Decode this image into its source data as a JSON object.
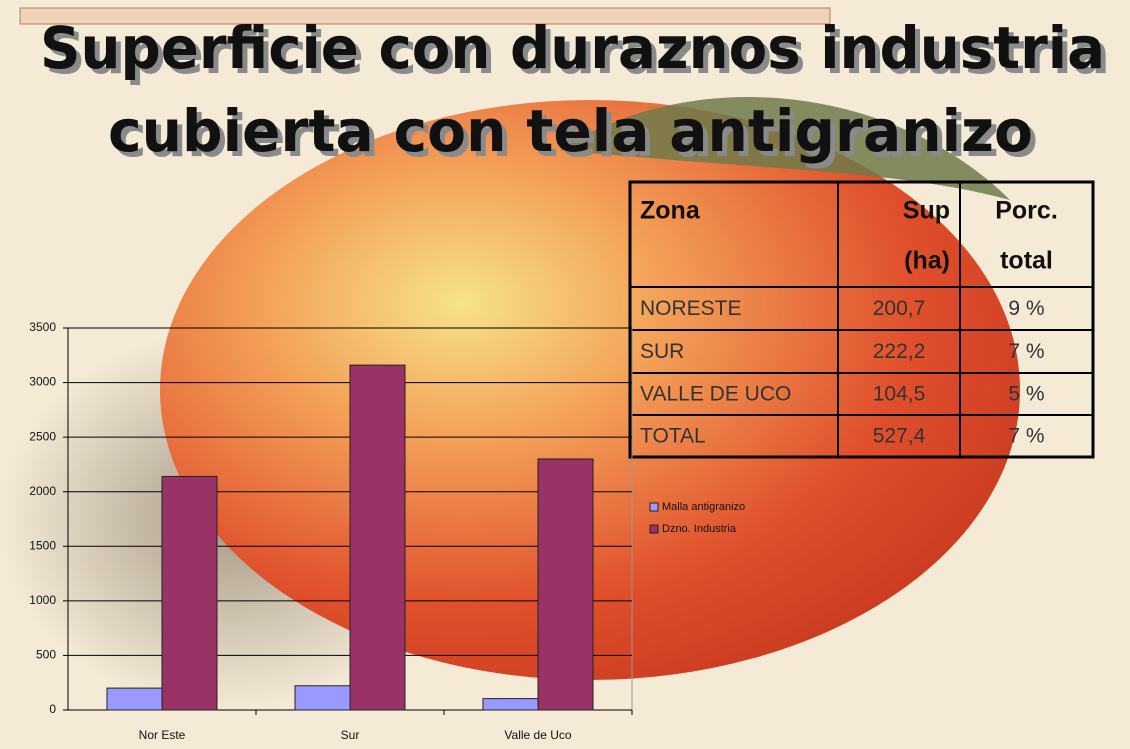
{
  "title": [
    "Superficie con duraznos industria",
    "cubierta con tela antigranizo"
  ],
  "table": {
    "header": [
      [
        "Zona"
      ],
      [
        "Sup",
        "(ha)"
      ],
      [
        "Porc.",
        "total"
      ]
    ],
    "rows": [
      [
        "NORESTE",
        "200,7",
        "9 %"
      ],
      [
        "SUR",
        "222,2",
        "7 %"
      ],
      [
        "VALLE DE UCO",
        "104,5",
        "5 %"
      ],
      [
        "TOTAL",
        "527,4",
        "7 %"
      ]
    ]
  },
  "chart_data": {
    "type": "bar",
    "categories": [
      "Nor Este",
      "Sur",
      "Valle de Uco"
    ],
    "series": [
      {
        "name": "Malla antigranizo",
        "color": "#9999ff",
        "values": [
          200.7,
          222.2,
          104.5
        ]
      },
      {
        "name": "Dzno. Industria",
        "color": "#993366",
        "values": [
          2140,
          3160,
          2300
        ]
      }
    ],
    "ylim": [
      0,
      3500
    ],
    "yticks": [
      0,
      500,
      1000,
      1500,
      2000,
      2500,
      3000,
      3500
    ],
    "grid": true,
    "legend": "right"
  }
}
